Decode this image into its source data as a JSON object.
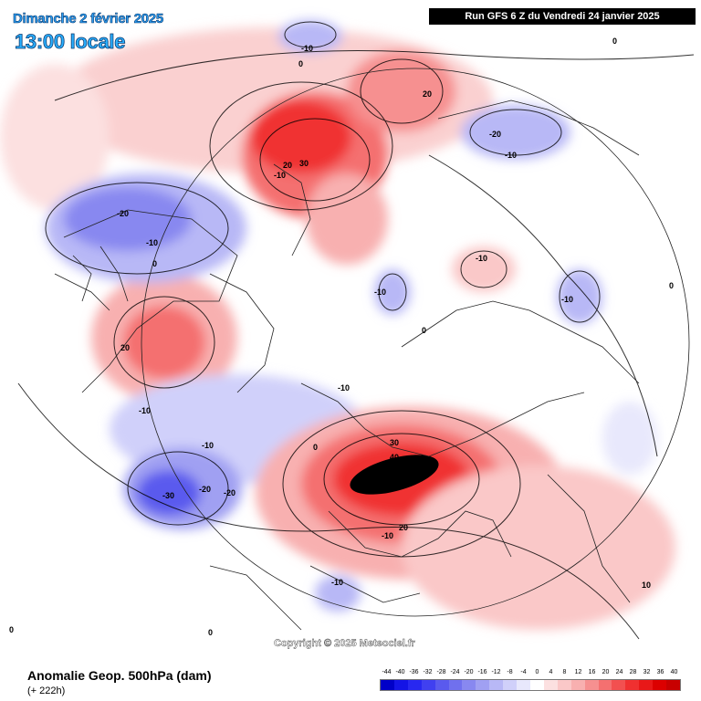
{
  "header": {
    "date": "Dimanche 2 février 2025",
    "time": "13:00 locale",
    "run": "Run GFS 6 Z du Vendredi 24 janvier 2025"
  },
  "copyright": "Copyright © 2025 Meteociel.fr",
  "footer": {
    "title": "Anomalie Geop. 500hPa (dam)",
    "subtitle": "(+ 222h)"
  },
  "scale": {
    "labels": [
      "-44",
      "-40",
      "-36",
      "-32",
      "-28",
      "-24",
      "-20",
      "-16",
      "-12",
      "-8",
      "-4",
      "0",
      "4",
      "8",
      "12",
      "16",
      "20",
      "24",
      "28",
      "32",
      "36",
      "40"
    ],
    "colors": [
      "#0000c8",
      "#1414e6",
      "#2828f0",
      "#4040f0",
      "#5a5aee",
      "#7070ee",
      "#8888f0",
      "#a0a0f2",
      "#b8b8f6",
      "#d0d0fa",
      "#e8e8fc",
      "#ffffff",
      "#fce0e0",
      "#fac8c8",
      "#f8b0b0",
      "#f69090",
      "#f47070",
      "#f25050",
      "#f03030",
      "#e81818",
      "#dc0000",
      "#c80000"
    ]
  },
  "contour_labels": [
    {
      "text": "-10"
    },
    {
      "text": "0"
    },
    {
      "text": "20"
    },
    {
      "text": "20"
    },
    {
      "text": "30"
    },
    {
      "text": "-10"
    },
    {
      "text": "-20"
    },
    {
      "text": "-10"
    },
    {
      "text": "0"
    },
    {
      "text": "-20"
    },
    {
      "text": "-10"
    },
    {
      "text": "0"
    },
    {
      "text": "-10"
    },
    {
      "text": "-10"
    },
    {
      "text": "-10"
    },
    {
      "text": "0"
    },
    {
      "text": "20"
    },
    {
      "text": "0"
    },
    {
      "text": "-10"
    },
    {
      "text": "-10"
    },
    {
      "text": "-10"
    },
    {
      "text": "0"
    },
    {
      "text": "30"
    },
    {
      "text": "40"
    },
    {
      "text": "-30"
    },
    {
      "text": "-20"
    },
    {
      "text": "-20"
    },
    {
      "text": "-10"
    },
    {
      "text": "20"
    },
    {
      "text": "-10"
    },
    {
      "text": "0"
    },
    {
      "text": "0"
    },
    {
      "text": "10"
    }
  ]
}
